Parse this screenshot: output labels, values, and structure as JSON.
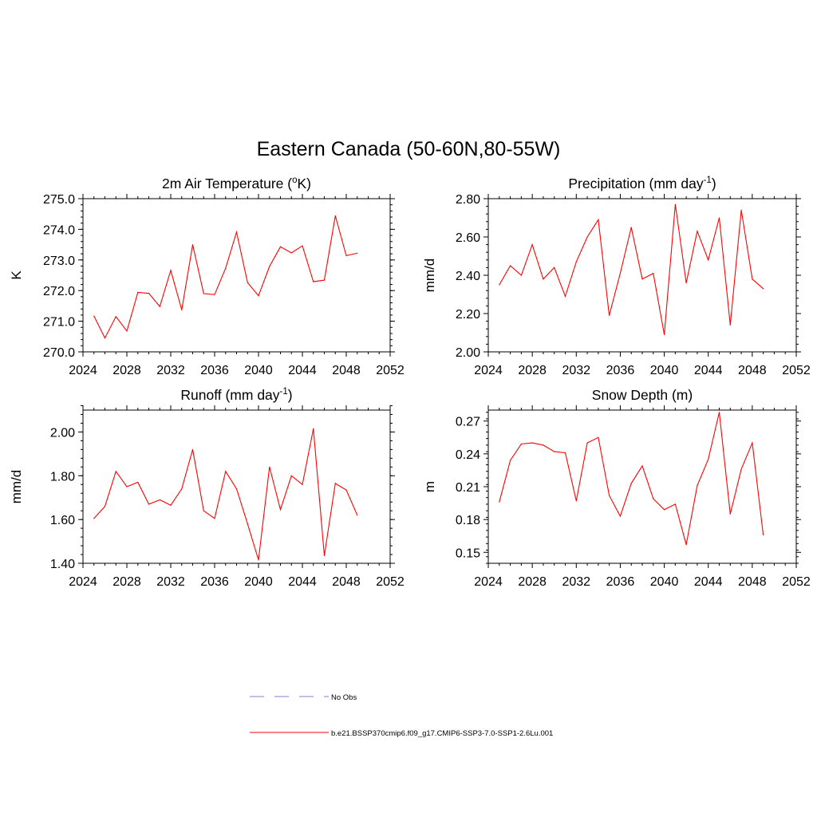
{
  "main_title": "Eastern Canada (50-60N,80-55W)",
  "colors": {
    "model_line": "#ff0000",
    "obs_line": "#9999dd",
    "axis": "#000000",
    "background": "#ffffff"
  },
  "legend": {
    "obs_label": "No Obs",
    "model_label": "b.e21.BSSP370cmip6.f09_g17.CMIP6-SSP3-7.0-SSP1-2.6Lu.001"
  },
  "chart_data": [
    {
      "type": "line",
      "title": "2m Air Temperature (°K)",
      "title_parts": {
        "base": "2m Air Temperature (",
        "sup": "o",
        "after": "K)"
      },
      "ylabel": "K",
      "xlim": [
        2024,
        2052
      ],
      "xticks": [
        "2024",
        "2028",
        "2032",
        "2036",
        "2040",
        "2044",
        "2048",
        "2052"
      ],
      "ylim": [
        270.0,
        275.0
      ],
      "yticks": [
        "270.0",
        "271.0",
        "272.0",
        "273.0",
        "274.0",
        "275.0"
      ],
      "ytick_values": [
        270.0,
        271.0,
        272.0,
        273.0,
        274.0,
        275.0
      ],
      "ytick_minor_step": 0.2,
      "series": [
        {
          "x": [
            2025,
            2026,
            2027,
            2028,
            2029,
            2030,
            2031,
            2032,
            2033,
            2034,
            2035,
            2036,
            2037,
            2038,
            2039,
            2040,
            2041,
            2042,
            2043,
            2044,
            2045,
            2046,
            2047,
            2048,
            2049
          ],
          "values": [
            271.17,
            270.45,
            271.15,
            270.68,
            271.94,
            271.91,
            271.48,
            272.66,
            271.37,
            273.5,
            271.9,
            271.87,
            272.73,
            273.91,
            272.26,
            271.83,
            272.79,
            273.43,
            273.23,
            273.46,
            272.29,
            272.34,
            274.44,
            273.14,
            273.22
          ]
        }
      ]
    },
    {
      "type": "line",
      "title": "Precipitation (mm day-1)",
      "title_parts": {
        "base": "Precipitation (mm day",
        "sup": "-1",
        "after": ")"
      },
      "ylabel": "mm/d",
      "xlim": [
        2024,
        2052
      ],
      "xticks": [
        "2024",
        "2028",
        "2032",
        "2036",
        "2040",
        "2044",
        "2048",
        "2052"
      ],
      "ylim": [
        2.0,
        2.8
      ],
      "yticks": [
        "2.00",
        "2.20",
        "2.40",
        "2.60",
        "2.80"
      ],
      "ytick_values": [
        2.0,
        2.2,
        2.4,
        2.6,
        2.8
      ],
      "ytick_minor_step": 0.04,
      "series": [
        {
          "x": [
            2025,
            2026,
            2027,
            2028,
            2029,
            2030,
            2031,
            2032,
            2033,
            2034,
            2035,
            2036,
            2037,
            2038,
            2039,
            2040,
            2041,
            2042,
            2043,
            2044,
            2045,
            2046,
            2047,
            2048,
            2049
          ],
          "values": [
            2.35,
            2.45,
            2.4,
            2.56,
            2.38,
            2.44,
            2.29,
            2.47,
            2.6,
            2.69,
            2.19,
            2.41,
            2.65,
            2.38,
            2.41,
            2.09,
            2.77,
            2.36,
            2.63,
            2.48,
            2.7,
            2.14,
            2.74,
            2.38,
            2.33
          ]
        }
      ]
    },
    {
      "type": "line",
      "title": "Runoff (mm day-1)",
      "title_parts": {
        "base": "Runoff (mm day",
        "sup": "-1",
        "after": ")"
      },
      "ylabel": "mm/d",
      "xlim": [
        2024,
        2052
      ],
      "xticks": [
        "2024",
        "2028",
        "2032",
        "2036",
        "2040",
        "2044",
        "2048",
        "2052"
      ],
      "ylim": [
        1.4,
        2.1
      ],
      "yticks": [
        "1.40",
        "1.60",
        "1.80",
        "2.00"
      ],
      "ytick_values": [
        1.4,
        1.6,
        1.8,
        2.0
      ],
      "ytick_minor_step": 0.04,
      "series": [
        {
          "x": [
            2025,
            2026,
            2027,
            2028,
            2029,
            2030,
            2031,
            2032,
            2033,
            2034,
            2035,
            2036,
            2037,
            2038,
            2039,
            2040,
            2041,
            2042,
            2043,
            2044,
            2045,
            2046,
            2047,
            2048,
            2049
          ],
          "values": [
            1.605,
            1.66,
            1.82,
            1.75,
            1.77,
            1.67,
            1.69,
            1.665,
            1.74,
            1.92,
            1.64,
            1.605,
            1.82,
            1.74,
            1.58,
            1.415,
            1.84,
            1.645,
            1.8,
            1.76,
            2.015,
            1.435,
            1.765,
            1.735,
            1.62
          ]
        }
      ]
    },
    {
      "type": "line",
      "title": "Snow Depth (m)",
      "title_parts": {
        "base": "Snow Depth (m)",
        "sup": "",
        "after": ""
      },
      "ylabel": "m",
      "xlim": [
        2024,
        2052
      ],
      "xticks": [
        "2024",
        "2028",
        "2032",
        "2036",
        "2040",
        "2044",
        "2048",
        "2052"
      ],
      "ylim": [
        0.14,
        0.28
      ],
      "yticks": [
        "0.15",
        "0.18",
        "0.21",
        "0.24",
        "0.27"
      ],
      "ytick_values": [
        0.15,
        0.18,
        0.21,
        0.24,
        0.27
      ],
      "ytick_minor_step": 0.006,
      "series": [
        {
          "x": [
            2025,
            2026,
            2027,
            2028,
            2029,
            2030,
            2031,
            2032,
            2033,
            2034,
            2035,
            2036,
            2037,
            2038,
            2039,
            2040,
            2041,
            2042,
            2043,
            2044,
            2045,
            2046,
            2047,
            2048,
            2049
          ],
          "values": [
            0.196,
            0.234,
            0.249,
            0.25,
            0.248,
            0.242,
            0.241,
            0.197,
            0.25,
            0.255,
            0.202,
            0.183,
            0.213,
            0.229,
            0.199,
            0.189,
            0.194,
            0.157,
            0.211,
            0.235,
            0.278,
            0.185,
            0.226,
            0.25,
            0.166
          ]
        }
      ]
    }
  ]
}
